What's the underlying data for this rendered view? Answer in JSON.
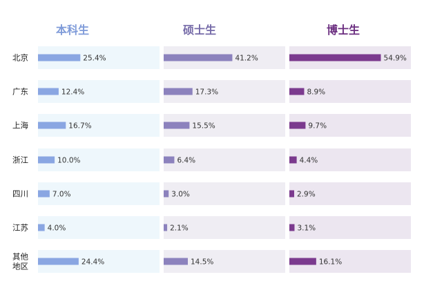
{
  "chart_data": {
    "type": "bar",
    "categories": [
      "北京",
      "广东",
      "上海",
      "浙江",
      "四川",
      "江苏",
      "其他地区"
    ],
    "series": [
      {
        "name": "本科生",
        "values": [
          25.4,
          12.4,
          16.7,
          10.0,
          7.0,
          4.0,
          24.4
        ],
        "labels": [
          "25.4%",
          "12.4%",
          "16.7%",
          "10.0%",
          "7.0%",
          "4.0%",
          "24.4%"
        ],
        "color": "#8aa6e2",
        "panel_color": "#eef7fc",
        "header_color": "#7f9bd9"
      },
      {
        "name": "硕士生",
        "values": [
          41.2,
          17.3,
          15.5,
          6.4,
          3.0,
          2.1,
          14.5
        ],
        "labels": [
          "41.2%",
          "17.3%",
          "15.5%",
          "6.4%",
          "3.0%",
          "2.1%",
          "14.5%"
        ],
        "color": "#8c82bd",
        "panel_color": "#efedf3",
        "header_color": "#756aa8"
      },
      {
        "name": "博士生",
        "values": [
          54.9,
          8.9,
          9.7,
          4.4,
          2.9,
          3.1,
          16.1
        ],
        "labels": [
          "54.9%",
          "8.9%",
          "9.7%",
          "4.4%",
          "2.9%",
          "3.1%",
          "16.1%"
        ],
        "color": "#7b3a8e",
        "panel_color": "#ece6f0",
        "header_color": "#6b2e80"
      }
    ],
    "xlim": [
      0,
      58
    ],
    "unit": "%"
  }
}
